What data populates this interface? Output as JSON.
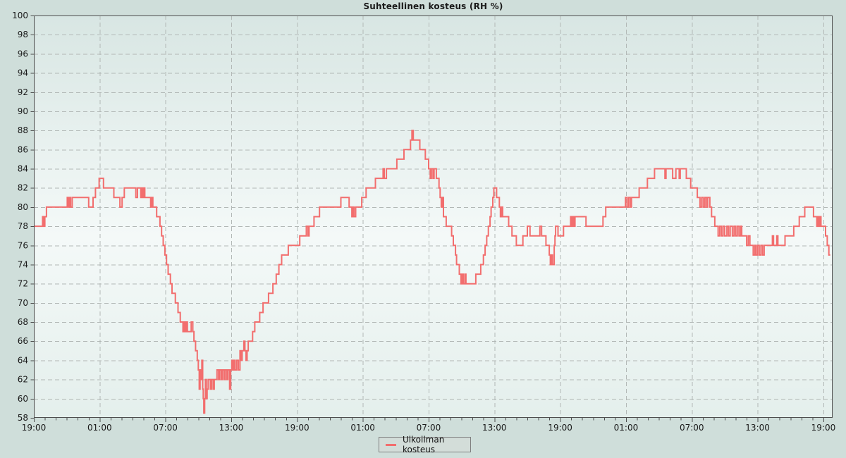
{
  "title": "Suhteellinen kosteus (RH %)",
  "legend": {
    "label": "Ulkoilman kosteus"
  },
  "colors": {
    "outer_bg": "#cfdeda",
    "plot_bg_top": "#d8e6e3",
    "plot_bg_mid": "#f4f9f8",
    "plot_bg_bottom": "#e4efec",
    "grid": "#b2b8b6",
    "axis": "#4d4d4d",
    "line": "#f26e6e",
    "text": "#1a1a1a",
    "legend_bg": "#d3ddd9",
    "legend_border": "#7f7f7f"
  },
  "chart_data": {
    "type": "line",
    "line_style": "step-post",
    "title": "Suhteellinen kosteus (RH %)",
    "xlabel": "",
    "ylabel": "",
    "series_name": "Ulkoilman kosteus",
    "legend": [
      "Ulkoilman kosteus"
    ],
    "legend_position": "bottom-center",
    "grid": "dashed",
    "ylim": [
      58,
      100
    ],
    "y_tick_step": 2,
    "x_hours_range": [
      0,
      72.84
    ],
    "x_minor_tick_every_hours": 1,
    "x_major_ticks": [
      {
        "hour": 0,
        "label": "19:00"
      },
      {
        "hour": 6,
        "label": "01:00"
      },
      {
        "hour": 12,
        "label": "07:00"
      },
      {
        "hour": 18,
        "label": "13:00"
      },
      {
        "hour": 24,
        "label": "19:00"
      },
      {
        "hour": 30,
        "label": "01:00"
      },
      {
        "hour": 36,
        "label": "07:00"
      },
      {
        "hour": 42,
        "label": "13:00"
      },
      {
        "hour": 48,
        "label": "19:00"
      },
      {
        "hour": 54,
        "label": "01:00"
      },
      {
        "hour": 60,
        "label": "07:00"
      },
      {
        "hour": 66,
        "label": "13:00"
      },
      {
        "hour": 72,
        "label": "19:00"
      }
    ],
    "data_end_hour": 72.62,
    "points": [
      [
        0,
        78
      ],
      [
        0.8,
        79
      ],
      [
        0.9,
        78
      ],
      [
        1,
        79
      ],
      [
        1.15,
        80
      ],
      [
        3.05,
        81
      ],
      [
        3.15,
        80
      ],
      [
        3.25,
        81
      ],
      [
        3.35,
        80
      ],
      [
        3.5,
        81
      ],
      [
        5,
        80
      ],
      [
        5.4,
        81
      ],
      [
        5.62,
        82
      ],
      [
        5.95,
        83
      ],
      [
        6.35,
        82
      ],
      [
        7.3,
        81
      ],
      [
        7.85,
        80
      ],
      [
        8.05,
        81
      ],
      [
        8.25,
        82
      ],
      [
        9.3,
        81
      ],
      [
        9.45,
        82
      ],
      [
        9.75,
        81
      ],
      [
        9.85,
        82
      ],
      [
        9.95,
        81
      ],
      [
        10.05,
        82
      ],
      [
        10.12,
        81
      ],
      [
        10.65,
        80
      ],
      [
        10.75,
        81
      ],
      [
        10.85,
        80
      ],
      [
        11.2,
        79
      ],
      [
        11.5,
        78
      ],
      [
        11.65,
        77
      ],
      [
        11.8,
        76
      ],
      [
        11.95,
        75
      ],
      [
        12.1,
        74
      ],
      [
        12.25,
        73
      ],
      [
        12.45,
        72
      ],
      [
        12.6,
        71
      ],
      [
        12.9,
        70
      ],
      [
        13.15,
        69
      ],
      [
        13.35,
        68
      ],
      [
        13.6,
        67
      ],
      [
        13.7,
        68
      ],
      [
        13.8,
        67
      ],
      [
        13.9,
        68
      ],
      [
        14,
        67
      ],
      [
        14.35,
        68
      ],
      [
        14.5,
        67
      ],
      [
        14.6,
        66
      ],
      [
        14.75,
        65
      ],
      [
        14.9,
        64
      ],
      [
        15,
        63
      ],
      [
        15.08,
        61
      ],
      [
        15.16,
        63
      ],
      [
        15.24,
        62
      ],
      [
        15.32,
        64
      ],
      [
        15.4,
        61
      ],
      [
        15.45,
        60
      ],
      [
        15.5,
        58.5
      ],
      [
        15.58,
        60
      ],
      [
        15.65,
        62
      ],
      [
        15.73,
        60
      ],
      [
        15.8,
        61
      ],
      [
        15.9,
        62
      ],
      [
        16.1,
        61
      ],
      [
        16.2,
        62
      ],
      [
        16.35,
        61
      ],
      [
        16.45,
        62
      ],
      [
        16.7,
        63
      ],
      [
        16.85,
        62
      ],
      [
        16.95,
        63
      ],
      [
        17.1,
        62
      ],
      [
        17.2,
        63
      ],
      [
        17.35,
        62
      ],
      [
        17.45,
        63
      ],
      [
        17.6,
        62
      ],
      [
        17.7,
        63
      ],
      [
        17.85,
        61
      ],
      [
        17.95,
        63
      ],
      [
        18.05,
        64
      ],
      [
        18.15,
        63
      ],
      [
        18.25,
        64
      ],
      [
        18.35,
        63
      ],
      [
        18.5,
        64
      ],
      [
        18.65,
        63
      ],
      [
        18.8,
        65
      ],
      [
        18.9,
        64
      ],
      [
        19,
        65
      ],
      [
        19.15,
        66
      ],
      [
        19.25,
        65
      ],
      [
        19.35,
        64
      ],
      [
        19.45,
        65
      ],
      [
        19.55,
        66
      ],
      [
        19.95,
        67
      ],
      [
        20.15,
        68
      ],
      [
        20.6,
        69
      ],
      [
        20.9,
        70
      ],
      [
        21.4,
        71
      ],
      [
        21.8,
        72
      ],
      [
        22.1,
        73
      ],
      [
        22.35,
        74
      ],
      [
        22.6,
        75
      ],
      [
        23.2,
        76
      ],
      [
        24.25,
        77
      ],
      [
        24.85,
        78
      ],
      [
        25,
        77
      ],
      [
        25.1,
        78
      ],
      [
        25.55,
        79
      ],
      [
        26.05,
        80
      ],
      [
        28,
        81
      ],
      [
        28.75,
        80
      ],
      [
        29,
        79
      ],
      [
        29.1,
        80
      ],
      [
        29.2,
        79
      ],
      [
        29.35,
        80
      ],
      [
        29.9,
        81
      ],
      [
        30.3,
        82
      ],
      [
        31.15,
        83
      ],
      [
        31.85,
        84
      ],
      [
        31.95,
        83
      ],
      [
        32.15,
        84
      ],
      [
        33.1,
        85
      ],
      [
        33.75,
        86
      ],
      [
        34.35,
        87
      ],
      [
        34.48,
        88
      ],
      [
        34.6,
        87
      ],
      [
        35.2,
        86
      ],
      [
        35.7,
        85
      ],
      [
        36,
        84
      ],
      [
        36.15,
        83
      ],
      [
        36.25,
        84
      ],
      [
        36.4,
        83
      ],
      [
        36.5,
        84
      ],
      [
        36.7,
        83
      ],
      [
        36.95,
        82
      ],
      [
        37.05,
        81
      ],
      [
        37.15,
        80
      ],
      [
        37.25,
        81
      ],
      [
        37.35,
        79
      ],
      [
        37.6,
        78
      ],
      [
        38.1,
        77
      ],
      [
        38.25,
        76
      ],
      [
        38.45,
        75
      ],
      [
        38.55,
        74
      ],
      [
        38.8,
        73
      ],
      [
        38.95,
        72
      ],
      [
        39.05,
        73
      ],
      [
        39.15,
        72
      ],
      [
        39.3,
        73
      ],
      [
        39.4,
        72
      ],
      [
        40.3,
        73
      ],
      [
        40.75,
        74
      ],
      [
        41,
        75
      ],
      [
        41.15,
        76
      ],
      [
        41.3,
        77
      ],
      [
        41.45,
        78
      ],
      [
        41.6,
        79
      ],
      [
        41.7,
        80
      ],
      [
        41.85,
        81
      ],
      [
        41.95,
        82
      ],
      [
        42.2,
        81
      ],
      [
        42.45,
        80
      ],
      [
        42.55,
        79
      ],
      [
        42.65,
        80
      ],
      [
        42.75,
        79
      ],
      [
        43.3,
        78
      ],
      [
        43.6,
        77
      ],
      [
        44,
        76
      ],
      [
        44.6,
        77
      ],
      [
        45,
        78
      ],
      [
        45.25,
        77
      ],
      [
        46.15,
        78
      ],
      [
        46.3,
        77
      ],
      [
        46.7,
        76
      ],
      [
        47,
        75
      ],
      [
        47.1,
        74
      ],
      [
        47.2,
        75
      ],
      [
        47.3,
        74
      ],
      [
        47.45,
        76
      ],
      [
        47.52,
        77
      ],
      [
        47.58,
        78
      ],
      [
        47.8,
        77
      ],
      [
        48.3,
        78
      ],
      [
        48.95,
        79
      ],
      [
        49.05,
        78
      ],
      [
        49.15,
        79
      ],
      [
        49.25,
        78
      ],
      [
        49.35,
        79
      ],
      [
        50.35,
        78
      ],
      [
        51.9,
        79
      ],
      [
        52.15,
        80
      ],
      [
        53.95,
        81
      ],
      [
        54.1,
        80
      ],
      [
        54.25,
        81
      ],
      [
        54.4,
        80
      ],
      [
        54.5,
        81
      ],
      [
        55.2,
        82
      ],
      [
        55.95,
        83
      ],
      [
        56.6,
        84
      ],
      [
        57.55,
        83
      ],
      [
        57.65,
        84
      ],
      [
        58.25,
        83
      ],
      [
        58.55,
        84
      ],
      [
        58.85,
        83
      ],
      [
        58.95,
        84
      ],
      [
        59.5,
        83
      ],
      [
        59.9,
        82
      ],
      [
        60.5,
        81
      ],
      [
        60.75,
        80
      ],
      [
        60.9,
        81
      ],
      [
        61.05,
        80
      ],
      [
        61.2,
        81
      ],
      [
        61.35,
        80
      ],
      [
        61.45,
        81
      ],
      [
        61.65,
        80
      ],
      [
        61.8,
        79
      ],
      [
        62.1,
        78
      ],
      [
        62.4,
        77
      ],
      [
        62.55,
        78
      ],
      [
        62.7,
        77
      ],
      [
        62.85,
        78
      ],
      [
        63,
        77
      ],
      [
        63.2,
        78
      ],
      [
        63.35,
        77
      ],
      [
        63.5,
        78
      ],
      [
        63.7,
        77
      ],
      [
        63.85,
        78
      ],
      [
        64,
        77
      ],
      [
        64.15,
        78
      ],
      [
        64.3,
        77
      ],
      [
        64.45,
        78
      ],
      [
        64.55,
        77
      ],
      [
        65,
        76
      ],
      [
        65.15,
        77
      ],
      [
        65.3,
        76
      ],
      [
        65.6,
        75
      ],
      [
        65.75,
        76
      ],
      [
        65.85,
        75
      ],
      [
        66,
        76
      ],
      [
        66.15,
        75
      ],
      [
        66.3,
        76
      ],
      [
        66.45,
        75
      ],
      [
        66.6,
        76
      ],
      [
        67.35,
        77
      ],
      [
        67.45,
        76
      ],
      [
        67.75,
        77
      ],
      [
        67.85,
        76
      ],
      [
        68.5,
        77
      ],
      [
        69.3,
        78
      ],
      [
        69.8,
        79
      ],
      [
        70.3,
        80
      ],
      [
        71.1,
        79
      ],
      [
        71.4,
        78
      ],
      [
        71.48,
        79
      ],
      [
        71.58,
        78
      ],
      [
        71.68,
        79
      ],
      [
        71.78,
        78
      ],
      [
        72.2,
        77
      ],
      [
        72.35,
        76
      ],
      [
        72.5,
        75
      ]
    ]
  }
}
